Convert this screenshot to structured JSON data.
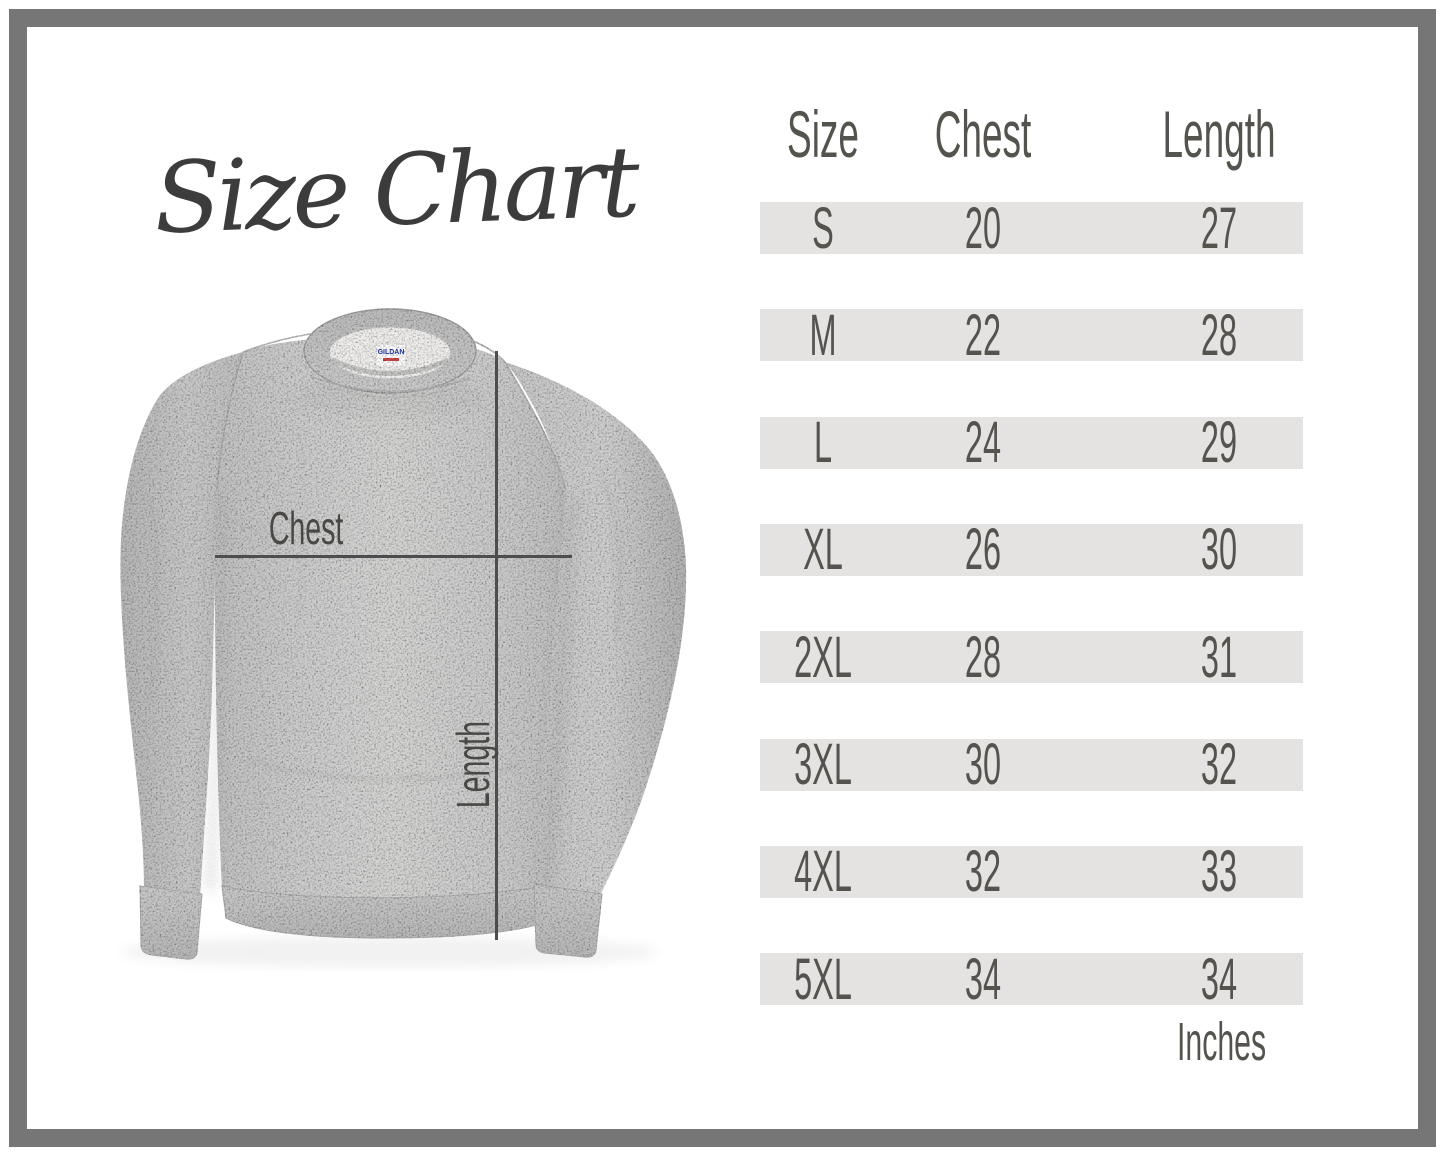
{
  "page": {
    "title": "Size Chart",
    "unit_label": "Inches"
  },
  "table": {
    "headers": [
      "Size",
      "Chest",
      "Length"
    ],
    "rows": [
      [
        "S",
        "20",
        "27"
      ],
      [
        "M",
        "22",
        "28"
      ],
      [
        "L",
        "24",
        "29"
      ],
      [
        "XL",
        "26",
        "30"
      ],
      [
        "2XL",
        "28",
        "31"
      ],
      [
        "3XL",
        "30",
        "32"
      ],
      [
        "4XL",
        "32",
        "33"
      ],
      [
        "5XL",
        "34",
        "34"
      ]
    ]
  },
  "diagram": {
    "chest_label": "Chest",
    "length_label": "Length",
    "tag_brand": "GILDAN"
  },
  "colors": {
    "frame": "#767676",
    "row_stripe": "#e4e3e2",
    "table_text": "#55534e",
    "title_text": "#3c3c3c",
    "measure_line": "#4d4d4d",
    "garment_base": "#cccccc"
  },
  "chart_data": {
    "type": "table",
    "title": "Size Chart",
    "columns": [
      "Size",
      "Chest",
      "Length"
    ],
    "units": "Inches",
    "rows": [
      [
        "S",
        20,
        27
      ],
      [
        "M",
        22,
        28
      ],
      [
        "L",
        24,
        29
      ],
      [
        "XL",
        26,
        30
      ],
      [
        "2XL",
        28,
        31
      ],
      [
        "3XL",
        30,
        32
      ],
      [
        "4XL",
        32,
        33
      ],
      [
        "5XL",
        34,
        34
      ]
    ]
  }
}
